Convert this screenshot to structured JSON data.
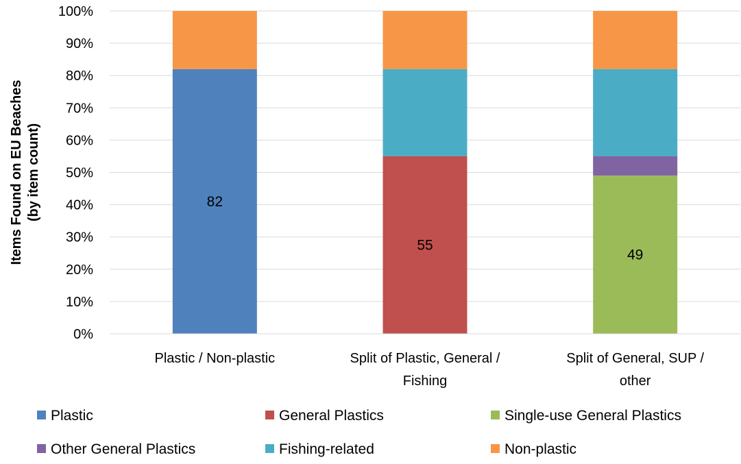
{
  "chart_data": {
    "type": "bar",
    "stacked": true,
    "title": "",
    "xlabel": "",
    "ylabel": [
      "Items Found on EU Beaches",
      "(by item count)"
    ],
    "ylim": [
      0,
      100
    ],
    "y_ticks": [
      "0%",
      "10%",
      "20%",
      "30%",
      "40%",
      "50%",
      "60%",
      "70%",
      "80%",
      "90%",
      "100%"
    ],
    "grid": true,
    "legend_position": "bottom",
    "categories": [
      [
        "Plastic / Non-plastic"
      ],
      [
        "Split of Plastic, General /",
        "Fishing"
      ],
      [
        "Split of General, SUP /",
        "other"
      ]
    ],
    "series": [
      {
        "name": "Plastic",
        "color": "#4F81BD",
        "values": [
          82,
          0,
          0
        ],
        "labels": [
          "82",
          "",
          ""
        ]
      },
      {
        "name": "General Plastics",
        "color": "#C0504D",
        "values": [
          0,
          55,
          0
        ],
        "labels": [
          "",
          "55",
          ""
        ]
      },
      {
        "name": "Single-use General Plastics",
        "color": "#9BBB59",
        "values": [
          0,
          0,
          49
        ],
        "labels": [
          "",
          "",
          "49"
        ]
      },
      {
        "name": "Other General Plastics",
        "color": "#8064A2",
        "values": [
          0,
          0,
          6
        ],
        "labels": [
          "",
          "",
          ""
        ]
      },
      {
        "name": "Fishing-related",
        "color": "#4BACC6",
        "values": [
          0,
          27,
          27
        ],
        "labels": [
          "",
          "",
          ""
        ]
      },
      {
        "name": "Non-plastic",
        "color": "#F79646",
        "values": [
          18,
          18,
          18
        ],
        "labels": [
          "",
          "",
          ""
        ]
      }
    ]
  }
}
